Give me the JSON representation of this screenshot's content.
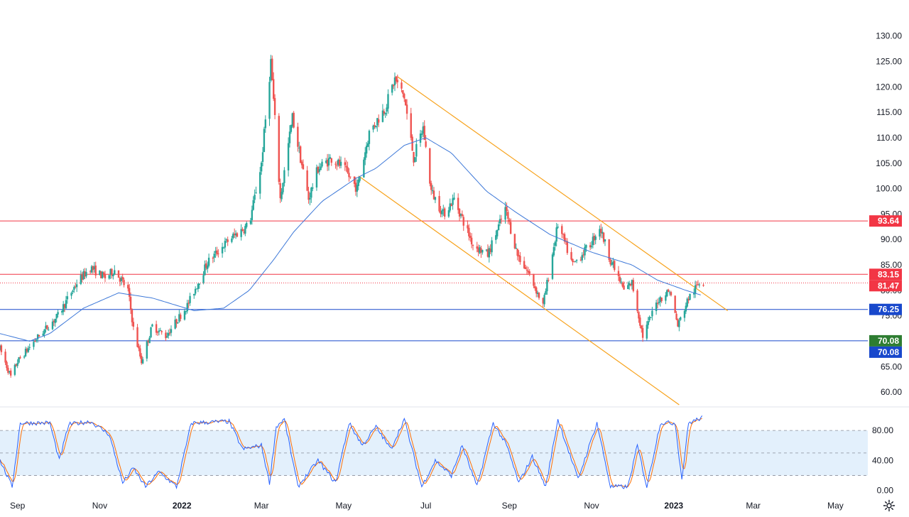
{
  "chart_data": {
    "type": "candlestick",
    "price_axis": {
      "ticks": [
        "130.00",
        "125.00",
        "120.00",
        "115.00",
        "110.00",
        "105.00",
        "100.00",
        "95.00",
        "90.00",
        "85.00",
        "80.00",
        "75.00",
        "65.00",
        "60.00"
      ],
      "tick_values": [
        130,
        125,
        120,
        115,
        110,
        105,
        100,
        95,
        90,
        85,
        80,
        75,
        65,
        60
      ],
      "range": [
        57.5,
        131.5
      ]
    },
    "oscillator_axis": {
      "ticks": [
        "80.00",
        "40.00",
        "0.00"
      ],
      "tick_values": [
        80,
        40,
        0
      ],
      "range": [
        -5,
        100
      ],
      "overbought": 80,
      "oversold": 20,
      "midline": 50
    },
    "time_axis": {
      "ticks": [
        "Sep",
        "Nov",
        "2022",
        "Mar",
        "May",
        "Jul",
        "Sep",
        "Nov",
        "2023",
        "Mar",
        "May"
      ],
      "tick_dates": [
        "2021-09-01",
        "2021-11-01",
        "2022-01-01",
        "2022-03-01",
        "2022-05-01",
        "2022-07-01",
        "2022-09-01",
        "2022-11-01",
        "2023-01-01",
        "2023-03-01",
        "2023-05-01"
      ],
      "range": [
        "2021-08-19",
        "2023-05-25"
      ]
    },
    "price_levels": [
      {
        "label": "93.64",
        "value": 93.64,
        "line_color": "#f23645",
        "badge_color": "#f23645",
        "style": "solid"
      },
      {
        "label": "83.15",
        "value": 83.15,
        "line_color": "#f23645",
        "badge_color": "#f23645",
        "style": "solid"
      },
      {
        "label": "81.47",
        "value": 81.47,
        "line_color": "#f23645",
        "badge_color": "#f23645",
        "style": "dotted"
      },
      {
        "label": "76.25",
        "value": 76.25,
        "line_color": "#1848cc",
        "badge_color": "#1848cc",
        "style": "solid"
      },
      {
        "label": "70.08",
        "value": 70.08,
        "line_color": "#1848cc",
        "badge_color": "#2e7d32",
        "style": "solid"
      },
      {
        "label": "70.08",
        "value": 70.08,
        "line_color": "#1848cc",
        "badge_color": "#1848cc",
        "style": "none"
      }
    ],
    "channel": {
      "color": "#f7a21b",
      "upper": [
        {
          "date": "2022-06-10",
          "value": 122.0
        },
        {
          "date": "2023-02-10",
          "value": 76.0
        }
      ],
      "lower": [
        {
          "date": "2022-05-12",
          "value": 102.5
        },
        {
          "date": "2023-01-05",
          "value": 57.5
        }
      ]
    },
    "ohlc_anchors": [
      {
        "date": "2021-08-19",
        "value": 68.5
      },
      {
        "date": "2021-08-27",
        "value": 63.0
      },
      {
        "date": "2021-09-01",
        "value": 66.0
      },
      {
        "date": "2021-09-15",
        "value": 70.5
      },
      {
        "date": "2021-10-01",
        "value": 75.0
      },
      {
        "date": "2021-10-15",
        "value": 81.5
      },
      {
        "date": "2021-10-25",
        "value": 84.5
      },
      {
        "date": "2021-11-05",
        "value": 82.5
      },
      {
        "date": "2021-11-12",
        "value": 84.0
      },
      {
        "date": "2021-11-22",
        "value": 80.0
      },
      {
        "date": "2021-11-26",
        "value": 72.5
      },
      {
        "date": "2021-12-02",
        "value": 66.0
      },
      {
        "date": "2021-12-10",
        "value": 73.0
      },
      {
        "date": "2021-12-20",
        "value": 71.0
      },
      {
        "date": "2022-01-05",
        "value": 77.0
      },
      {
        "date": "2022-01-20",
        "value": 85.5
      },
      {
        "date": "2022-02-05",
        "value": 90.0
      },
      {
        "date": "2022-02-20",
        "value": 93.0
      },
      {
        "date": "2022-03-01",
        "value": 105.0
      },
      {
        "date": "2022-03-08",
        "value": 125.0
      },
      {
        "date": "2022-03-15",
        "value": 98.0
      },
      {
        "date": "2022-03-24",
        "value": 114.0
      },
      {
        "date": "2022-04-05",
        "value": 98.0
      },
      {
        "date": "2022-04-12",
        "value": 104.0
      },
      {
        "date": "2022-04-22",
        "value": 106.0
      },
      {
        "date": "2022-05-01",
        "value": 104.0
      },
      {
        "date": "2022-05-11",
        "value": 100.0
      },
      {
        "date": "2022-05-20",
        "value": 111.0
      },
      {
        "date": "2022-06-01",
        "value": 116.0
      },
      {
        "date": "2022-06-08",
        "value": 121.5
      },
      {
        "date": "2022-06-15",
        "value": 118.0
      },
      {
        "date": "2022-06-22",
        "value": 106.0
      },
      {
        "date": "2022-06-29",
        "value": 112.0
      },
      {
        "date": "2022-07-05",
        "value": 99.5
      },
      {
        "date": "2022-07-14",
        "value": 95.0
      },
      {
        "date": "2022-07-22",
        "value": 98.0
      },
      {
        "date": "2022-08-05",
        "value": 89.0
      },
      {
        "date": "2022-08-16",
        "value": 87.0
      },
      {
        "date": "2022-08-29",
        "value": 96.0
      },
      {
        "date": "2022-09-07",
        "value": 87.0
      },
      {
        "date": "2022-09-16",
        "value": 83.0
      },
      {
        "date": "2022-09-26",
        "value": 77.0
      },
      {
        "date": "2022-10-07",
        "value": 93.0
      },
      {
        "date": "2022-10-18",
        "value": 85.0
      },
      {
        "date": "2022-10-31",
        "value": 89.0
      },
      {
        "date": "2022-11-07",
        "value": 92.5
      },
      {
        "date": "2022-11-15",
        "value": 86.0
      },
      {
        "date": "2022-11-25",
        "value": 80.0
      },
      {
        "date": "2022-12-01",
        "value": 81.5
      },
      {
        "date": "2022-12-09",
        "value": 71.0
      },
      {
        "date": "2022-12-20",
        "value": 78.0
      },
      {
        "date": "2022-12-29",
        "value": 80.0
      },
      {
        "date": "2023-01-04",
        "value": 73.0
      },
      {
        "date": "2023-01-12",
        "value": 78.5
      },
      {
        "date": "2023-01-20",
        "value": 81.5
      },
      {
        "date": "2023-01-23",
        "value": 81.6
      }
    ],
    "moving_average": {
      "color": "#3d78d8",
      "points": [
        {
          "date": "2021-08-19",
          "value": 71.5
        },
        {
          "date": "2021-09-10",
          "value": 70.0
        },
        {
          "date": "2021-09-25",
          "value": 71.5
        },
        {
          "date": "2021-10-20",
          "value": 76.5
        },
        {
          "date": "2021-11-15",
          "value": 79.5
        },
        {
          "date": "2021-12-10",
          "value": 78.5
        },
        {
          "date": "2022-01-10",
          "value": 76.0
        },
        {
          "date": "2022-02-01",
          "value": 76.5
        },
        {
          "date": "2022-02-20",
          "value": 80.0
        },
        {
          "date": "2022-03-10",
          "value": 86.0
        },
        {
          "date": "2022-03-25",
          "value": 91.5
        },
        {
          "date": "2022-04-15",
          "value": 97.5
        },
        {
          "date": "2022-05-10",
          "value": 102.0
        },
        {
          "date": "2022-05-25",
          "value": 104.0
        },
        {
          "date": "2022-06-15",
          "value": 108.5
        },
        {
          "date": "2022-07-01",
          "value": 110.0
        },
        {
          "date": "2022-07-20",
          "value": 107.0
        },
        {
          "date": "2022-08-15",
          "value": 99.5
        },
        {
          "date": "2022-09-05",
          "value": 95.5
        },
        {
          "date": "2022-10-01",
          "value": 91.0
        },
        {
          "date": "2022-11-01",
          "value": 87.5
        },
        {
          "date": "2022-12-01",
          "value": 85.0
        },
        {
          "date": "2022-12-20",
          "value": 82.0
        },
        {
          "date": "2023-01-10",
          "value": 80.0
        },
        {
          "date": "2023-01-22",
          "value": 79.0
        }
      ]
    },
    "stochastic": {
      "k_color": "#2962ff",
      "d_color": "#ff6d00",
      "band_color": "#e3f0fc",
      "anchors": [
        {
          "date": "2021-08-19",
          "value": 40
        },
        {
          "date": "2021-08-28",
          "value": 5
        },
        {
          "date": "2021-09-03",
          "value": 90
        },
        {
          "date": "2021-09-25",
          "value": 90
        },
        {
          "date": "2021-10-02",
          "value": 40
        },
        {
          "date": "2021-10-09",
          "value": 88
        },
        {
          "date": "2021-10-25",
          "value": 92
        },
        {
          "date": "2021-11-08",
          "value": 75
        },
        {
          "date": "2021-11-18",
          "value": 10
        },
        {
          "date": "2021-11-26",
          "value": 30
        },
        {
          "date": "2021-12-05",
          "value": 5
        },
        {
          "date": "2021-12-15",
          "value": 25
        },
        {
          "date": "2021-12-28",
          "value": 5
        },
        {
          "date": "2022-01-08",
          "value": 90
        },
        {
          "date": "2022-02-05",
          "value": 92
        },
        {
          "date": "2022-02-15",
          "value": 55
        },
        {
          "date": "2022-03-01",
          "value": 60
        },
        {
          "date": "2022-03-07",
          "value": 10
        },
        {
          "date": "2022-03-12",
          "value": 85
        },
        {
          "date": "2022-03-18",
          "value": 95
        },
        {
          "date": "2022-03-28",
          "value": 5
        },
        {
          "date": "2022-04-12",
          "value": 40
        },
        {
          "date": "2022-04-25",
          "value": 10
        },
        {
          "date": "2022-05-05",
          "value": 90
        },
        {
          "date": "2022-05-15",
          "value": 60
        },
        {
          "date": "2022-05-25",
          "value": 85
        },
        {
          "date": "2022-06-05",
          "value": 55
        },
        {
          "date": "2022-06-15",
          "value": 95
        },
        {
          "date": "2022-06-28",
          "value": 5
        },
        {
          "date": "2022-07-08",
          "value": 40
        },
        {
          "date": "2022-07-20",
          "value": 20
        },
        {
          "date": "2022-07-28",
          "value": 60
        },
        {
          "date": "2022-08-08",
          "value": 5
        },
        {
          "date": "2022-08-20",
          "value": 90
        },
        {
          "date": "2022-08-30",
          "value": 60
        },
        {
          "date": "2022-09-08",
          "value": 10
        },
        {
          "date": "2022-09-18",
          "value": 45
        },
        {
          "date": "2022-09-28",
          "value": 5
        },
        {
          "date": "2022-10-07",
          "value": 95
        },
        {
          "date": "2022-10-22",
          "value": 15
        },
        {
          "date": "2022-11-05",
          "value": 90
        },
        {
          "date": "2022-11-15",
          "value": 5
        },
        {
          "date": "2022-11-28",
          "value": 5
        },
        {
          "date": "2022-12-05",
          "value": 60
        },
        {
          "date": "2022-12-12",
          "value": 5
        },
        {
          "date": "2022-12-22",
          "value": 90
        },
        {
          "date": "2023-01-02",
          "value": 90
        },
        {
          "date": "2023-01-07",
          "value": 15
        },
        {
          "date": "2023-01-12",
          "value": 90
        },
        {
          "date": "2023-01-22",
          "value": 97
        }
      ]
    },
    "colors": {
      "up": "#26a69a",
      "down": "#ef5350",
      "grid_dash": "#8a8e99",
      "text": "#131722"
    }
  },
  "icons": {
    "settings": "gear-icon"
  }
}
